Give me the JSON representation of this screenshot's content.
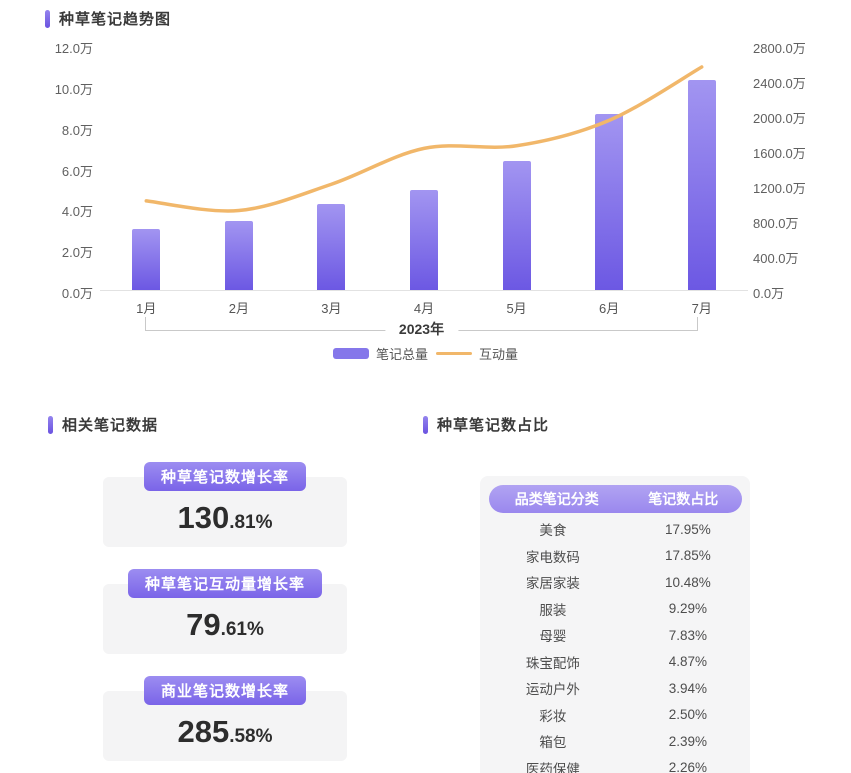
{
  "colors": {
    "accent_purple": "#7b66e8",
    "bar_gradient_top": "#a295f1",
    "bar_gradient_bottom": "#6c58e3",
    "line_orange": "#f1b76a",
    "card_bg": "#f4f4f5"
  },
  "trend_section": {
    "title": "种草笔记趋势图",
    "x_group_label": "2023年",
    "legend": [
      {
        "label": "笔记总量",
        "swatch": "bar-swatch"
      },
      {
        "label": "互动量",
        "swatch": "line-swatch"
      }
    ]
  },
  "chart_data": {
    "type": "bar+line",
    "title": "种草笔记趋势图",
    "categories": [
      "1月",
      "2月",
      "3月",
      "4月",
      "5月",
      "6月",
      "7月"
    ],
    "series": [
      {
        "name": "笔记总量",
        "type": "bar",
        "axis": "left",
        "unit": "万",
        "values": [
          3.0,
          3.4,
          4.2,
          4.9,
          6.3,
          8.6,
          10.3
        ]
      },
      {
        "name": "互动量",
        "type": "line",
        "axis": "right",
        "unit": "万",
        "values": [
          1030,
          920,
          1220,
          1630,
          1660,
          1950,
          2560
        ]
      }
    ],
    "left_axis": {
      "min": 0,
      "max": 12,
      "ticks": [
        "12.0万",
        "10.0万",
        "8.0万",
        "6.0万",
        "4.0万",
        "2.0万",
        "0.0万"
      ]
    },
    "right_axis": {
      "min": 0,
      "max": 2800,
      "ticks": [
        "2800.0万",
        "2400.0万",
        "2000.0万",
        "1600.0万",
        "1200.0万",
        "800.0万",
        "400.0万",
        "0.0万"
      ]
    },
    "grid": false,
    "legend_position": "bottom",
    "x_group_label": "2023年"
  },
  "stats_section": {
    "title": "相关笔记数据",
    "cards": [
      {
        "label": "种草笔记数增长率",
        "value": "130.81%",
        "value_main": "130",
        "value_sub": ".81%"
      },
      {
        "label": "种草笔记互动量增长率",
        "value": "79.61%",
        "value_main": "79",
        "value_sub": ".61%"
      },
      {
        "label": "商业笔记数增长率",
        "value": "285.58%",
        "value_main": "285",
        "value_sub": ".58%"
      }
    ]
  },
  "share_section": {
    "title": "种草笔记数占比",
    "table": {
      "headers": [
        "品类笔记分类",
        "笔记数占比"
      ],
      "rows": [
        {
          "category": "美食",
          "share": "17.95%"
        },
        {
          "category": "家电数码",
          "share": "17.85%"
        },
        {
          "category": "家居家装",
          "share": "10.48%"
        },
        {
          "category": "服装",
          "share": "9.29%"
        },
        {
          "category": "母婴",
          "share": "7.83%"
        },
        {
          "category": "珠宝配饰",
          "share": "4.87%"
        },
        {
          "category": "运动户外",
          "share": "3.94%"
        },
        {
          "category": "彩妆",
          "share": "2.50%"
        },
        {
          "category": "箱包",
          "share": "2.39%"
        },
        {
          "category": "医药保健",
          "share": "2.26%"
        }
      ]
    }
  }
}
